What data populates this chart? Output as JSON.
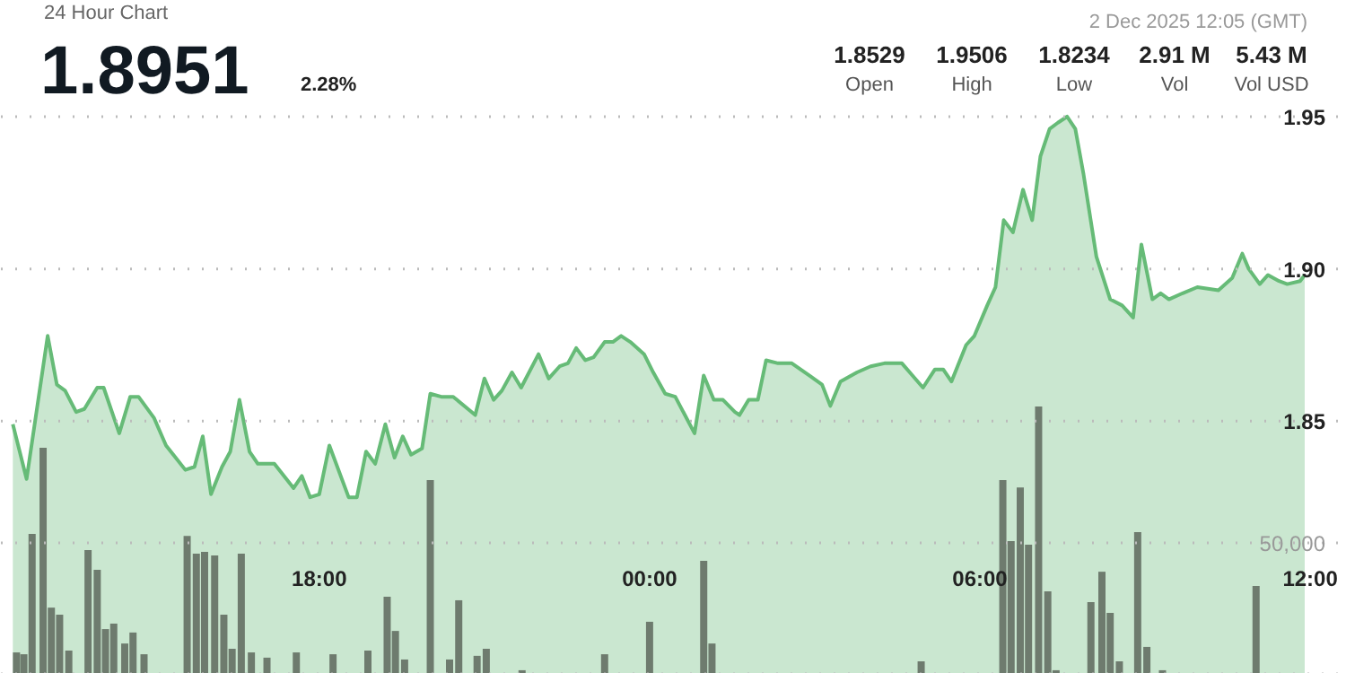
{
  "chart_data": {
    "type": "area",
    "title": "24 Hour Chart",
    "annotations": [
      "1.8951",
      "2.28%",
      "2 Dec 2025 12:05 (GMT)",
      "1.8529",
      "Open",
      "1.9506",
      "High",
      "1.8234",
      "Low",
      "2.91 M",
      "Vol",
      "5.43 M",
      "Vol USD"
    ],
    "xlim": [
      "2025-12-01T12:13",
      "2025-12-02T12:40"
    ],
    "xticks": [
      {
        "value": "2025-12-01T18:00",
        "label": "18:00"
      },
      {
        "value": "2025-12-02T00:00",
        "label": "00:00"
      },
      {
        "value": "2025-12-02T06:00",
        "label": "06:00"
      },
      {
        "value": "2025-12-02T12:00",
        "label": "12:00"
      }
    ],
    "ylim": [
      1.767,
      1.988
    ],
    "yticks": [
      1.85,
      {
        "value": 1.9,
        "label": "1.90"
      },
      1.95
    ],
    "y2lim": [
      0,
      256900
    ],
    "y2ticks": [
      {
        "value": 0,
        "label": null
      },
      {
        "value": 50000,
        "label": "50,000"
      }
    ],
    "grid": "y",
    "series": [
      {
        "color": "#66bb77",
        "x": [
          "2025-12-01T12:26",
          "2025-12-01T12:41",
          "2025-12-01T13:04",
          "2025-12-01T13:14",
          "2025-12-01T13:23",
          "2025-12-01T13:35",
          "2025-12-01T13:44",
          "2025-12-01T13:58",
          "2025-12-01T14:05",
          "2025-12-01T14:22",
          "2025-12-01T14:34",
          "2025-12-01T14:43",
          "2025-12-01T15:00",
          "2025-12-01T15:13",
          "2025-12-01T15:34",
          "2025-12-01T15:44",
          "2025-12-01T15:53",
          "2025-12-01T16:02",
          "2025-12-01T16:14",
          "2025-12-01T16:23",
          "2025-12-01T16:33",
          "2025-12-01T16:44",
          "2025-12-01T16:53",
          "2025-12-01T17:11",
          "2025-12-01T17:32",
          "2025-12-01T17:41",
          "2025-12-01T17:50",
          "2025-12-01T18:00",
          "2025-12-01T18:11",
          "2025-12-01T18:32",
          "2025-12-01T18:41",
          "2025-12-01T18:51",
          "2025-12-01T19:01",
          "2025-12-01T19:12",
          "2025-12-01T19:22",
          "2025-12-01T19:31",
          "2025-12-01T19:40",
          "2025-12-01T19:52",
          "2025-12-01T20:01",
          "2025-12-01T20:13",
          "2025-12-01T20:26",
          "2025-12-01T20:50",
          "2025-12-01T21:00",
          "2025-12-01T21:10",
          "2025-12-01T21:19",
          "2025-12-01T21:30",
          "2025-12-01T21:40",
          "2025-12-01T21:59",
          "2025-12-01T22:10",
          "2025-12-01T22:22",
          "2025-12-01T22:31",
          "2025-12-01T22:40",
          "2025-12-01T22:50",
          "2025-12-01T22:59",
          "2025-12-01T23:11",
          "2025-12-01T23:20",
          "2025-12-01T23:29",
          "2025-12-01T23:39",
          "2025-12-01T23:54",
          "2025-12-02T00:04",
          "2025-12-02T00:17",
          "2025-12-02T00:28",
          "2025-12-02T00:49",
          "2025-12-02T00:59",
          "2025-12-02T01:10",
          "2025-12-02T01:20",
          "2025-12-02T01:33",
          "2025-12-02T01:38",
          "2025-12-02T01:48",
          "2025-12-02T01:58",
          "2025-12-02T02:07",
          "2025-12-02T02:20",
          "2025-12-02T02:35",
          "2025-12-02T02:54",
          "2025-12-02T03:08",
          "2025-12-02T03:17",
          "2025-12-02T03:28",
          "2025-12-02T03:46",
          "2025-12-02T04:01",
          "2025-12-02T04:16",
          "2025-12-02T04:35",
          "2025-12-02T04:58",
          "2025-12-02T05:11",
          "2025-12-02T05:20",
          "2025-12-02T05:29",
          "2025-12-02T05:45",
          "2025-12-02T05:54",
          "2025-12-02T06:08",
          "2025-12-02T06:17",
          "2025-12-02T06:26",
          "2025-12-02T06:36",
          "2025-12-02T06:47",
          "2025-12-02T06:57",
          "2025-12-02T07:06",
          "2025-12-02T07:16",
          "2025-12-02T07:25",
          "2025-12-02T07:35",
          "2025-12-02T07:44",
          "2025-12-02T07:53",
          "2025-12-02T08:07",
          "2025-12-02T08:22",
          "2025-12-02T08:35",
          "2025-12-02T08:47",
          "2025-12-02T08:56",
          "2025-12-02T09:08",
          "2025-12-02T09:17",
          "2025-12-02T09:26",
          "2025-12-02T09:41",
          "2025-12-02T09:57",
          "2025-12-02T10:20",
          "2025-12-02T10:35",
          "2025-12-02T10:46",
          "2025-12-02T10:53",
          "2025-12-02T11:05",
          "2025-12-02T11:14",
          "2025-12-02T11:26",
          "2025-12-02T11:35",
          "2025-12-02T11:49",
          "2025-12-02T11:54"
        ],
        "values": [
          1.849,
          1.831,
          1.878,
          1.862,
          1.86,
          1.853,
          1.854,
          1.861,
          1.861,
          1.846,
          1.858,
          1.858,
          1.851,
          1.842,
          1.834,
          1.835,
          1.845,
          1.826,
          1.835,
          1.84,
          1.857,
          1.84,
          1.836,
          1.836,
          1.828,
          1.832,
          1.825,
          1.826,
          1.842,
          1.825,
          1.825,
          1.84,
          1.836,
          1.849,
          1.838,
          1.845,
          1.839,
          1.841,
          1.859,
          1.858,
          1.858,
          1.852,
          1.864,
          1.857,
          1.86,
          1.866,
          1.861,
          1.872,
          1.864,
          1.868,
          1.869,
          1.874,
          1.87,
          1.871,
          1.876,
          1.876,
          1.878,
          1.876,
          1.872,
          1.866,
          1.859,
          1.858,
          1.846,
          1.865,
          1.857,
          1.857,
          1.853,
          1.852,
          1.857,
          1.857,
          1.87,
          1.869,
          1.869,
          1.865,
          1.862,
          1.855,
          1.863,
          1.866,
          1.868,
          1.869,
          1.869,
          1.861,
          1.867,
          1.867,
          1.863,
          1.875,
          1.878,
          1.888,
          1.894,
          1.916,
          1.912,
          1.926,
          1.916,
          1.937,
          1.946,
          1.948,
          1.95,
          1.946,
          1.931,
          1.904,
          1.89,
          1.888,
          1.884,
          1.908,
          1.89,
          1.892,
          1.89,
          1.892,
          1.894,
          1.893,
          1.897,
          1.905,
          1.9,
          1.895,
          1.898,
          1.896,
          1.895,
          1.896,
          1.898
        ]
      },
      {
        "type": "bar",
        "axis": "y2",
        "color": "#6e7b6e",
        "x": [
          "2025-12-01T12:30",
          "2025-12-01T12:38",
          "2025-12-01T12:47",
          "2025-12-01T12:59",
          "2025-12-01T13:08",
          "2025-12-01T13:17",
          "2025-12-01T13:27",
          "2025-12-01T13:48",
          "2025-12-01T13:58",
          "2025-12-01T14:07",
          "2025-12-01T14:16",
          "2025-12-01T14:28",
          "2025-12-01T14:37",
          "2025-12-01T14:49",
          "2025-12-01T15:36",
          "2025-12-01T15:46",
          "2025-12-01T15:55",
          "2025-12-01T16:06",
          "2025-12-01T16:16",
          "2025-12-01T16:25",
          "2025-12-01T16:35",
          "2025-12-01T16:46",
          "2025-12-01T17:03",
          "2025-12-01T17:35",
          "2025-12-01T18:15",
          "2025-12-01T18:53",
          "2025-12-01T19:14",
          "2025-12-01T19:23",
          "2025-12-01T19:33",
          "2025-12-01T20:01",
          "2025-12-01T20:22",
          "2025-12-01T20:32",
          "2025-12-01T20:52",
          "2025-12-01T21:02",
          "2025-12-01T21:41",
          "2025-12-01T23:11",
          "2025-12-02T00:00",
          "2025-12-02T00:59",
          "2025-12-02T01:08",
          "2025-12-02T04:56",
          "2025-12-02T06:25",
          "2025-12-02T06:34",
          "2025-12-02T06:44",
          "2025-12-02T06:53",
          "2025-12-02T07:04",
          "2025-12-02T07:14",
          "2025-12-02T07:23",
          "2025-12-02T08:01",
          "2025-12-02T08:13",
          "2025-12-02T08:22",
          "2025-12-02T08:32",
          "2025-12-02T08:52",
          "2025-12-02T09:02",
          "2025-12-02T09:19",
          "2025-12-02T11:01"
        ],
        "values": [
          8200,
          7500,
          53400,
          86300,
          25300,
          22600,
          8900,
          47300,
          39700,
          17100,
          19200,
          11600,
          15800,
          7500,
          52700,
          45900,
          46600,
          45200,
          22600,
          9600,
          45900,
          8200,
          6200,
          8200,
          7500,
          8900,
          29500,
          16400,
          5500,
          74000,
          5500,
          28100,
          6900,
          9600,
          1400,
          7500,
          19900,
          43200,
          11600,
          4800,
          74000,
          50700,
          71200,
          49300,
          102100,
          31500,
          1400,
          27400,
          39000,
          23300,
          4800,
          54100,
          10300,
          1400,
          33600
        ]
      }
    ]
  }
}
